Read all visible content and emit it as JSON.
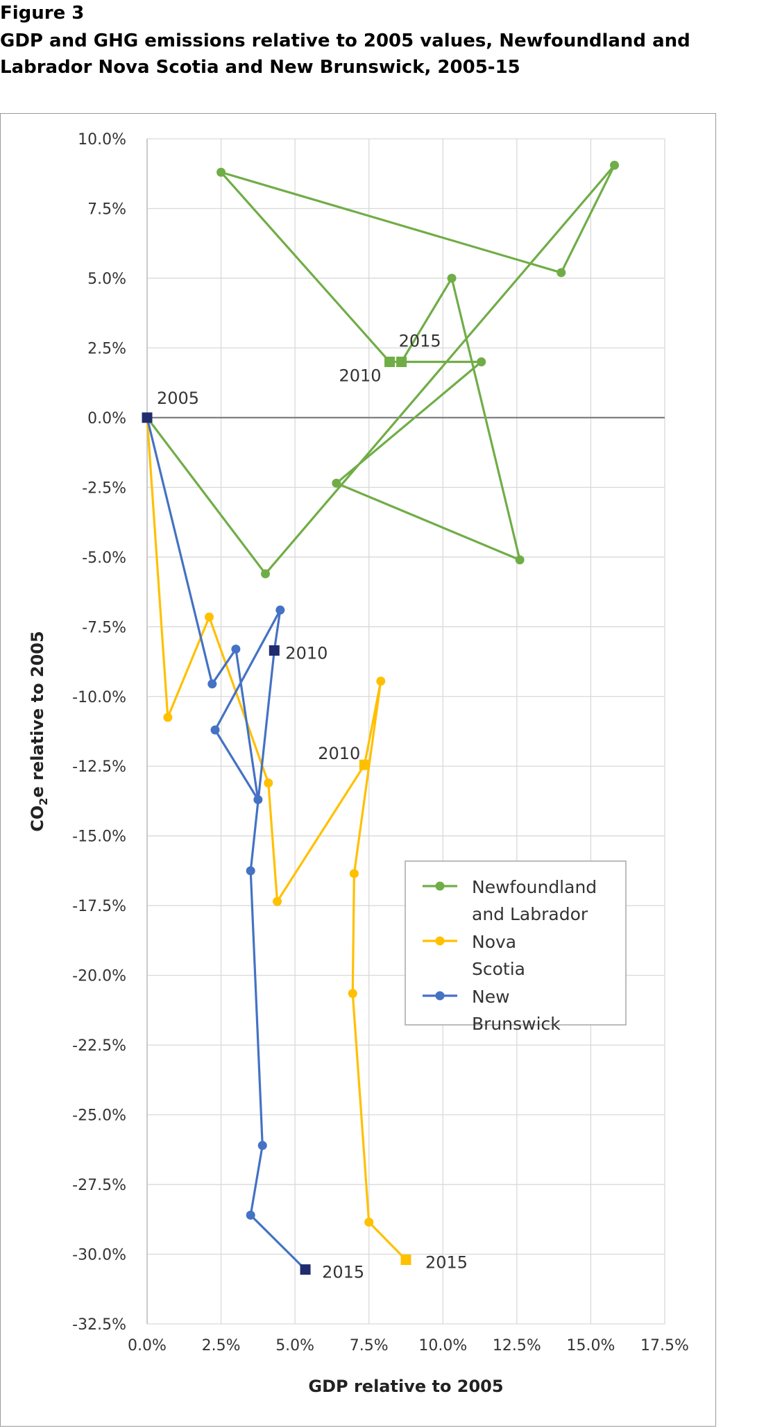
{
  "figure_label": "Figure 3",
  "title_line1": "GDP and GHG emissions relative to 2005 values, Newfoundland and",
  "title_line2": "Labrador Nova Scotia and New Brunswick, 2005-15",
  "chart_data": {
    "type": "scatter",
    "title": "GDP and GHG emissions relative to 2005 values, Newfoundland and Labrador Nova Scotia and New Brunswick, 2005-15",
    "xlabel": "GDP relative to 2005",
    "ylabel_main": "CO",
    "ylabel_sub": "2",
    "ylabel_rest": "e relative to 2005",
    "xlim": [
      0,
      17.5
    ],
    "ylim": [
      -32.5,
      10
    ],
    "x_ticks": [
      0,
      2.5,
      5,
      7.5,
      10,
      12.5,
      15,
      17.5
    ],
    "x_tick_labels": [
      "0.0%",
      "2.5%",
      "5.0%",
      "7.5%",
      "10.0%",
      "12.5%",
      "15.0%",
      "17.5%"
    ],
    "y_ticks": [
      10,
      7.5,
      5,
      2.5,
      0,
      -2.5,
      -5,
      -7.5,
      -10,
      -12.5,
      -15,
      -17.5,
      -20,
      -22.5,
      -25,
      -27.5,
      -30,
      -32.5
    ],
    "y_tick_labels": [
      "10.0%",
      "7.5%",
      "5.0%",
      "2.5%",
      "0.0%",
      "-2.5%",
      "-5.0%",
      "-7.5%",
      "-10.0%",
      "-12.5%",
      "-15.0%",
      "-17.5%",
      "-20.0%",
      "-22.5%",
      "-25.0%",
      "-27.5%",
      "-30.0%",
      "-32.5%"
    ],
    "grid": true,
    "legend_position": "lower-right",
    "series": [
      {
        "name_lines": [
          "Newfoundland",
          "and Labrador"
        ],
        "color": "#70ad47",
        "points": [
          [
            0,
            0
          ],
          [
            4.0,
            -5.6
          ],
          [
            15.8,
            9.05
          ],
          [
            14.0,
            5.2
          ],
          [
            2.5,
            8.8
          ],
          [
            8.2,
            2.0
          ],
          [
            11.3,
            2.0
          ],
          [
            6.4,
            -2.35
          ],
          [
            12.6,
            -5.1
          ],
          [
            10.3,
            5.0
          ],
          [
            8.6,
            2.0
          ]
        ],
        "square_indices": [
          5,
          10
        ]
      },
      {
        "name_lines": [
          "Nova",
          "Scotia"
        ],
        "color": "#ffc000",
        "points": [
          [
            0,
            0
          ],
          [
            0.7,
            -10.75
          ],
          [
            2.1,
            -7.15
          ],
          [
            4.1,
            -13.1
          ],
          [
            4.4,
            -17.35
          ],
          [
            7.35,
            -12.45
          ],
          [
            7.9,
            -9.45
          ],
          [
            7.0,
            -16.35
          ],
          [
            6.95,
            -20.65
          ],
          [
            7.5,
            -28.85
          ],
          [
            8.75,
            -30.2
          ]
        ],
        "square_indices": [
          5,
          10
        ]
      },
      {
        "name_lines": [
          "New",
          "Brunswick"
        ],
        "color": "#4472c4",
        "points": [
          [
            0,
            0
          ],
          [
            2.2,
            -9.55
          ],
          [
            3.0,
            -8.3
          ],
          [
            3.75,
            -13.7
          ],
          [
            2.3,
            -11.2
          ],
          [
            4.5,
            -6.9
          ],
          [
            4.3,
            -8.35
          ],
          [
            3.5,
            -16.25
          ],
          [
            3.9,
            -26.1
          ],
          [
            3.5,
            -28.6
          ],
          [
            5.35,
            -30.55
          ]
        ],
        "square_indices": [
          0,
          6,
          10
        ],
        "square_color": "#1f2c6e"
      }
    ],
    "annotations": [
      {
        "text": "2005",
        "x": 0,
        "y": 0
      },
      {
        "text": "2015",
        "x": 8.6,
        "y": 2.0
      },
      {
        "text": "2010",
        "x": 8.2,
        "y": 2.0
      },
      {
        "text": "2010",
        "x": 4.3,
        "y": -8.35
      },
      {
        "text": "2010",
        "x": 7.35,
        "y": -12.45
      },
      {
        "text": "2015",
        "x": 8.75,
        "y": -30.2
      },
      {
        "text": "2015",
        "x": 5.35,
        "y": -30.55
      }
    ]
  }
}
